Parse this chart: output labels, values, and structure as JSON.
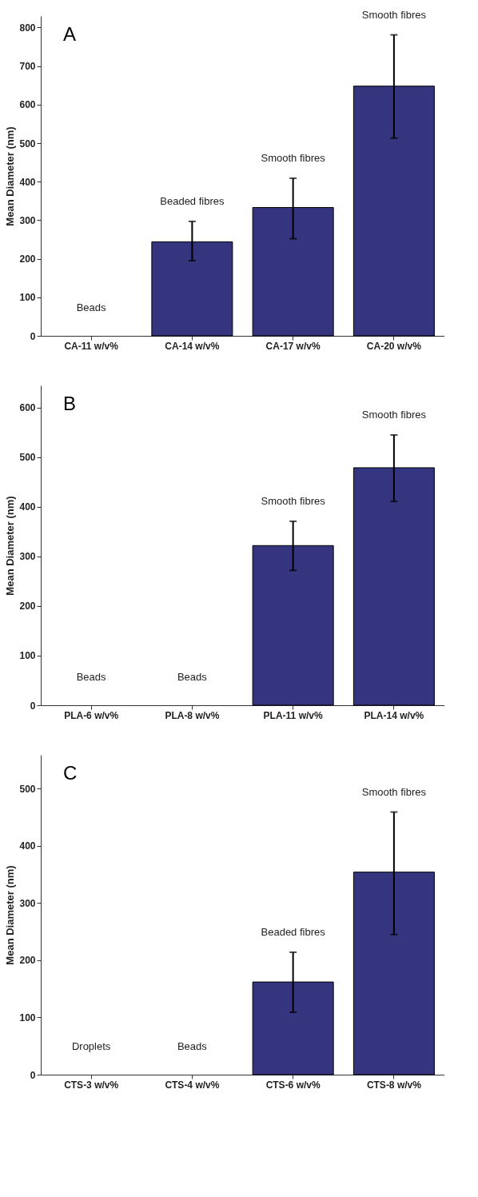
{
  "chart_data": [
    {
      "type": "bar",
      "title": "A",
      "ylabel": "Mean Diameter (nm)",
      "categories": [
        "CA-11 w/v%",
        "CA-14 w/v%",
        "CA-17 w/v%",
        "CA-20 w/v%"
      ],
      "values": [
        null,
        244,
        333,
        648
      ],
      "errors": [
        null,
        [
          195,
          297
        ],
        [
          252,
          409
        ],
        [
          513,
          781
        ]
      ],
      "color": "#34347f",
      "ylim": [
        0,
        830
      ],
      "yticks": [
        0,
        100,
        200,
        300,
        400,
        500,
        600,
        700,
        800
      ],
      "grid": false,
      "annotations": [
        "Beads",
        "Beaded fibres",
        "Smooth fibres",
        "Smooth fibres"
      ]
    },
    {
      "type": "bar",
      "title": "B",
      "ylabel": "Mean Diameter (nm)",
      "categories": [
        "PLA-6 w/v%",
        "PLA-8 w/v%",
        "PLA-11 w/v%",
        "PLA-14 w/v%"
      ],
      "values": [
        null,
        null,
        322,
        479
      ],
      "errors": [
        null,
        null,
        [
          272,
          371
        ],
        [
          411,
          545
        ]
      ],
      "color": "#34347f",
      "ylim": [
        0,
        645
      ],
      "yticks": [
        0,
        100,
        200,
        300,
        400,
        500,
        600
      ],
      "grid": false,
      "annotations": [
        "Beads",
        "Beads",
        "Smooth fibres",
        "Smooth fibres"
      ]
    },
    {
      "type": "bar",
      "title": "C",
      "ylabel": "Mean Diameter (nm)",
      "categories": [
        "CTS-3 w/v%",
        "CTS-4 w/v%",
        "CTS-6 w/v%",
        "CTS-8 w/v%"
      ],
      "values": [
        null,
        null,
        162,
        354
      ],
      "errors": [
        null,
        null,
        [
          109,
          214
        ],
        [
          245,
          459
        ]
      ],
      "color": "#34347f",
      "ylim": [
        0,
        559
      ],
      "yticks": [
        0,
        100,
        200,
        300,
        400,
        500
      ],
      "grid": false,
      "annotations": [
        "Droplets",
        "Beads",
        "Beaded fibres",
        "Smooth fibres"
      ]
    }
  ]
}
